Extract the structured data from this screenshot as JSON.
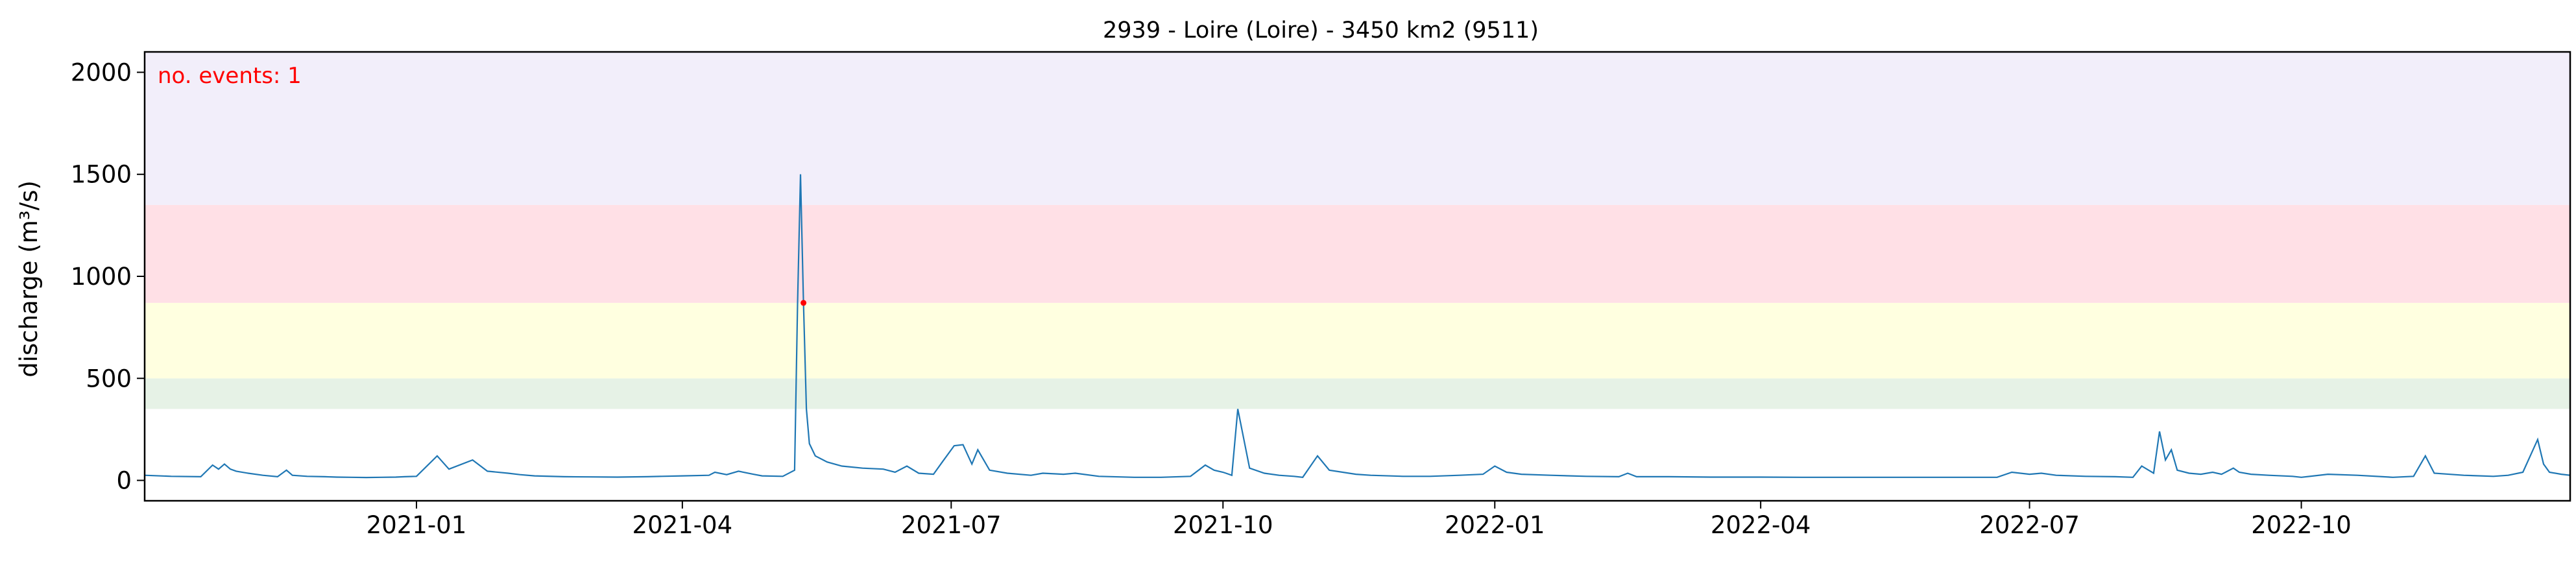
{
  "chart_data": {
    "type": "line",
    "title": "2939 - Loire (Loire) - 3450 km2 (9511)",
    "ylabel": "discharge (m³/s)",
    "xlabel": "",
    "xlim": [
      "2020-10-01",
      "2022-12-31"
    ],
    "ylim": [
      -100,
      2100
    ],
    "annotation": "no. events: 1",
    "annotation_color": "#ff0000",
    "line_color": "#1f77b4",
    "event_marker_color": "#ff0000",
    "grid": false,
    "threshold_bands": [
      {
        "y0": 350,
        "y1": 500,
        "color": "#e6f2e6"
      },
      {
        "y0": 500,
        "y1": 870,
        "color": "#ffffe0"
      },
      {
        "y0": 870,
        "y1": 1350,
        "color": "#ffe0e6"
      },
      {
        "y0": 1350,
        "y1": 2100,
        "color": "#f2eefa"
      }
    ],
    "x_ticks": [
      {
        "date": "2021-01-01",
        "label": "2021-01"
      },
      {
        "date": "2021-04-01",
        "label": "2021-04"
      },
      {
        "date": "2021-07-01",
        "label": "2021-07"
      },
      {
        "date": "2021-10-01",
        "label": "2021-10"
      },
      {
        "date": "2022-01-01",
        "label": "2022-01"
      },
      {
        "date": "2022-04-01",
        "label": "2022-04"
      },
      {
        "date": "2022-07-01",
        "label": "2022-07"
      },
      {
        "date": "2022-10-01",
        "label": "2022-10"
      }
    ],
    "y_ticks": [
      0,
      500,
      1000,
      1500,
      2000
    ],
    "events": [
      {
        "date": "2021-05-12",
        "value": 870
      }
    ],
    "series": [
      {
        "x": [
          "2020-10-01",
          "2020-10-10",
          "2020-10-20",
          "2020-10-24",
          "2020-10-26",
          "2020-10-28",
          "2020-10-30",
          "2020-11-01",
          "2020-11-05",
          "2020-11-10",
          "2020-11-15",
          "2020-11-18",
          "2020-11-20",
          "2020-11-25",
          "2020-12-01",
          "2020-12-05",
          "2020-12-10",
          "2020-12-15",
          "2020-12-20",
          "2020-12-25",
          "2020-12-28",
          "2021-01-01",
          "2021-01-08",
          "2021-01-12",
          "2021-01-20",
          "2021-01-25",
          "2021-02-01",
          "2021-02-05",
          "2021-02-10",
          "2021-02-20",
          "2021-03-01",
          "2021-03-10",
          "2021-03-20",
          "2021-03-25",
          "2021-04-01",
          "2021-04-10",
          "2021-04-12",
          "2021-04-16",
          "2021-04-20",
          "2021-04-25",
          "2021-04-28",
          "2021-05-05",
          "2021-05-09",
          "2021-05-10",
          "2021-05-11",
          "2021-05-12",
          "2021-05-13",
          "2021-05-14",
          "2021-05-16",
          "2021-05-20",
          "2021-05-25",
          "2021-06-01",
          "2021-06-08",
          "2021-06-12",
          "2021-06-16",
          "2021-06-20",
          "2021-06-25",
          "2021-06-28",
          "2021-07-02",
          "2021-07-05",
          "2021-07-08",
          "2021-07-10",
          "2021-07-14",
          "2021-07-20",
          "2021-07-28",
          "2021-08-01",
          "2021-08-08",
          "2021-08-12",
          "2021-08-20",
          "2021-09-01",
          "2021-09-10",
          "2021-09-20",
          "2021-09-25",
          "2021-09-28",
          "2021-10-01",
          "2021-10-02",
          "2021-10-04",
          "2021-10-06",
          "2021-10-10",
          "2021-10-15",
          "2021-10-20",
          "2021-10-25",
          "2021-10-28",
          "2021-11-02",
          "2021-11-06",
          "2021-11-15",
          "2021-11-20",
          "2021-12-01",
          "2021-12-10",
          "2021-12-20",
          "2021-12-28",
          "2022-01-01",
          "2022-01-05",
          "2022-01-10",
          "2022-01-20",
          "2022-02-01",
          "2022-02-12",
          "2022-02-15",
          "2022-02-18",
          "2022-03-01",
          "2022-03-15",
          "2022-04-01",
          "2022-04-15",
          "2022-05-01",
          "2022-05-15",
          "2022-06-01",
          "2022-06-20",
          "2022-06-25",
          "2022-07-01",
          "2022-07-05",
          "2022-07-10",
          "2022-07-20",
          "2022-07-30",
          "2022-08-05",
          "2022-08-08",
          "2022-08-12",
          "2022-08-14",
          "2022-08-16",
          "2022-08-18",
          "2022-08-20",
          "2022-08-24",
          "2022-08-28",
          "2022-09-01",
          "2022-09-04",
          "2022-09-08",
          "2022-09-10",
          "2022-09-14",
          "2022-09-20",
          "2022-09-28",
          "2022-10-01",
          "2022-10-10",
          "2022-10-20",
          "2022-11-01",
          "2022-11-08",
          "2022-11-12",
          "2022-11-15",
          "2022-11-25",
          "2022-12-05",
          "2022-12-10",
          "2022-12-15",
          "2022-12-20",
          "2022-12-22",
          "2022-12-24",
          "2022-12-28",
          "2022-12-31"
        ],
        "y": [
          25,
          20,
          18,
          75,
          55,
          80,
          55,
          45,
          35,
          25,
          18,
          50,
          25,
          20,
          18,
          16,
          15,
          14,
          15,
          16,
          18,
          20,
          120,
          55,
          100,
          45,
          35,
          28,
          22,
          18,
          17,
          16,
          18,
          20,
          22,
          25,
          40,
          28,
          45,
          30,
          22,
          20,
          50,
          870,
          1500,
          870,
          350,
          180,
          120,
          90,
          70,
          60,
          55,
          40,
          70,
          35,
          30,
          90,
          170,
          175,
          80,
          150,
          50,
          35,
          25,
          35,
          30,
          35,
          20,
          15,
          15,
          20,
          75,
          50,
          40,
          35,
          25,
          350,
          60,
          35,
          25,
          20,
          15,
          120,
          50,
          30,
          25,
          20,
          20,
          25,
          30,
          70,
          40,
          30,
          25,
          20,
          18,
          35,
          18,
          18,
          16,
          16,
          15,
          15,
          15,
          15,
          15,
          40,
          30,
          35,
          25,
          20,
          18,
          15,
          70,
          35,
          240,
          100,
          150,
          50,
          35,
          30,
          40,
          30,
          60,
          40,
          30,
          25,
          20,
          15,
          30,
          25,
          15,
          20,
          120,
          35,
          25,
          20,
          25,
          40,
          200,
          80,
          40,
          30,
          25
        ]
      }
    ]
  }
}
